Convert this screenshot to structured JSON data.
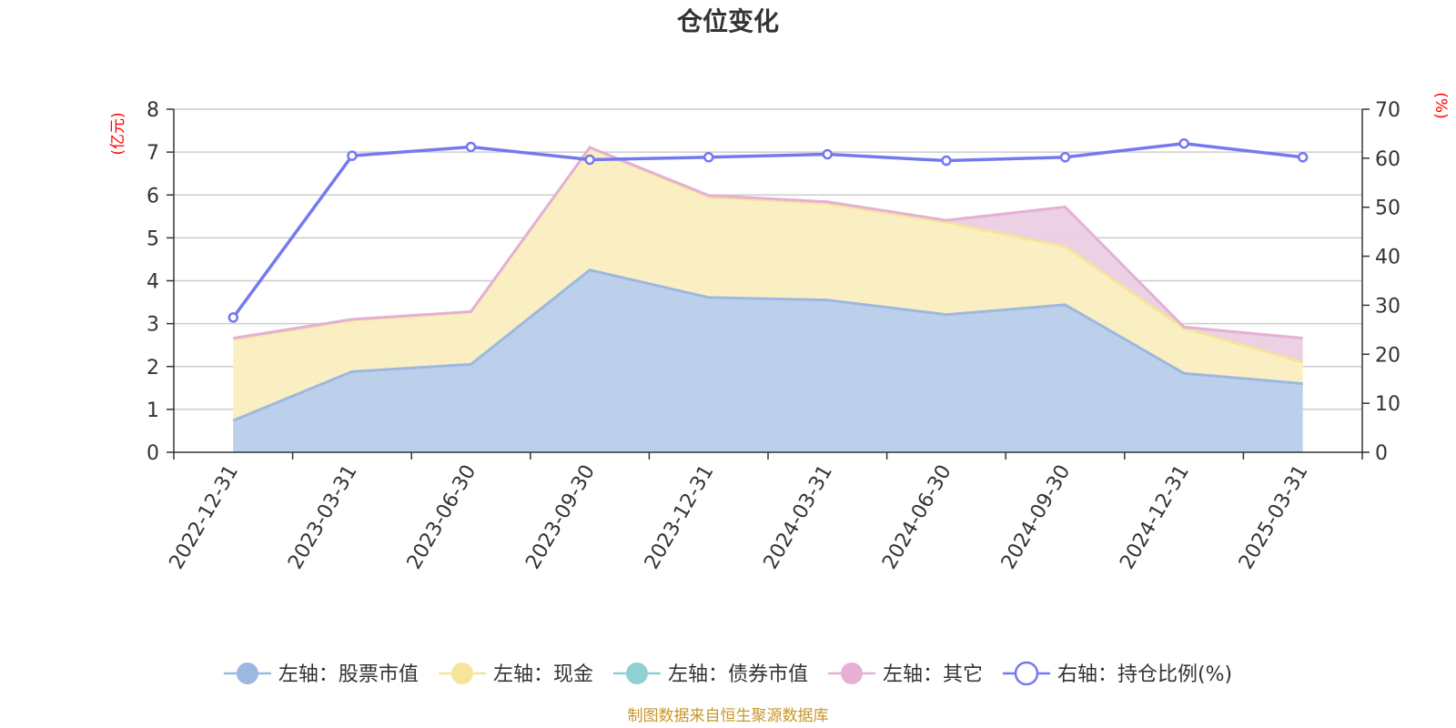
{
  "chart_data": {
    "type": "area",
    "title": "仓位变化",
    "categories": [
      "2022-12-31",
      "2023-03-31",
      "2023-06-30",
      "2023-09-30",
      "2023-12-31",
      "2024-03-31",
      "2024-06-30",
      "2024-09-30",
      "2024-12-31",
      "2025-03-31"
    ],
    "left_axis": {
      "unit": "(亿元)",
      "ylim": [
        0,
        8
      ],
      "ticks": [
        "0",
        "1",
        "2",
        "3",
        "4",
        "5",
        "6",
        "7",
        "8"
      ]
    },
    "right_axis": {
      "unit": "(%)",
      "ylim": [
        0,
        70
      ],
      "ticks": [
        "0",
        "10",
        "20",
        "30",
        "40",
        "50",
        "60",
        "70"
      ]
    },
    "series": [
      {
        "name": "左轴：股票市值",
        "axis": "left",
        "stacked": true,
        "values": [
          0.74,
          1.88,
          2.05,
          4.25,
          3.61,
          3.55,
          3.21,
          3.44,
          1.84,
          1.6
        ]
      },
      {
        "name": "左轴：现金",
        "axis": "left",
        "stacked": true,
        "values": [
          1.89,
          1.2,
          1.22,
          2.85,
          2.34,
          2.25,
          2.15,
          1.36,
          1.05,
          0.5
        ]
      },
      {
        "name": "左轴：债券市值",
        "axis": "left",
        "stacked": true,
        "values": [
          0,
          0,
          0,
          0,
          0,
          0,
          0,
          0,
          0,
          0
        ]
      },
      {
        "name": "左轴：其它",
        "axis": "left",
        "stacked": true,
        "values": [
          0.03,
          0.02,
          0.01,
          0.01,
          0.04,
          0.04,
          0.05,
          0.92,
          0.03,
          0.56
        ]
      },
      {
        "name": "右轴：持仓比例(%)",
        "axis": "right",
        "stacked": false,
        "values": [
          27.5,
          60.5,
          62.3,
          59.7,
          60.2,
          60.8,
          59.5,
          60.2,
          63.0,
          60.2
        ]
      }
    ],
    "grid": true,
    "legend_position": "bottom",
    "colors": {
      "stock": "#9db8e0",
      "stock_fill": "#b8cdeb",
      "cash": "#f6e39c",
      "cash_fill": "#faeec0",
      "bond": "#8fd0d2",
      "other": "#e4b0d4",
      "other_fill": "#ebcde3",
      "ratio": "#7479f0",
      "axis": "#333333",
      "gridline": "#cccccc"
    }
  },
  "source_note": "制图数据来自恒生聚源数据库"
}
